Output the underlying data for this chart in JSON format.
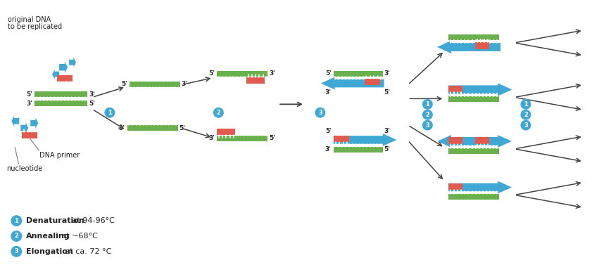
{
  "bg_color": "#ffffff",
  "blue_color": "#3fa8d5",
  "green_color": "#6ab04c",
  "red_color": "#e05a4e",
  "circle_color": "#3fa8d5",
  "text_color": "#222222",
  "arrow_color": "#444444",
  "legend": [
    {
      "num": "1",
      "bold": "Denaturation",
      "rest": " at 94-96°C"
    },
    {
      "num": "2",
      "bold": "Annealing",
      "rest": " at ~68°C"
    },
    {
      "num": "3",
      "bold": "Elongation",
      "rest": " at ca. 72 °C"
    }
  ],
  "figsize": [
    8.41,
    3.87
  ],
  "dpi": 100
}
